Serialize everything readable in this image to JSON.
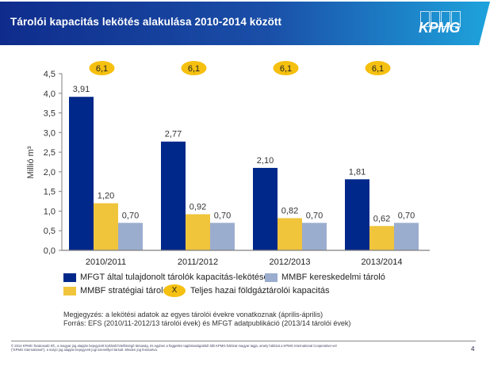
{
  "header": {
    "title": "Tárolói kapacitás lekötés alakulása 2010-2014 között",
    "logo": "KPMG",
    "colors": {
      "gradient_start": "#0F2C8C",
      "gradient_end": "#1EA3DC"
    }
  },
  "chart_data": {
    "type": "bar",
    "title": "",
    "xlabel": "",
    "ylabel": "Millió m³",
    "ylim": [
      0,
      4.5
    ],
    "yticks": [
      "0,0",
      "0,5",
      "1,0",
      "1,5",
      "2,0",
      "2,5",
      "3,0",
      "3,5",
      "4,0",
      "4,5"
    ],
    "categories": [
      "2010/2011",
      "2011/2012",
      "2012/2013",
      "2013/2014"
    ],
    "series": [
      {
        "name": "MFGT által tulajdonolt tárolók kapacitás-lekötése",
        "color": "#00288A",
        "values": [
          3.91,
          2.77,
          2.1,
          1.81
        ],
        "labels": [
          "3,91",
          "2,77",
          "2,10",
          "1,81"
        ]
      },
      {
        "name": "MMBF stratégiai tároló",
        "color": "#F0C53C",
        "values": [
          1.2,
          0.92,
          0.82,
          0.62
        ],
        "labels": [
          "1,20",
          "0,92",
          "0,82",
          "0,62"
        ]
      },
      {
        "name": "MMBF kereskedelmi tároló",
        "color": "#9BADCF",
        "values": [
          0.7,
          0.7,
          0.7,
          0.7
        ],
        "labels": [
          "0,70",
          "0,70",
          "0,70",
          "0,70"
        ]
      }
    ],
    "total_capacity": {
      "name": "Teljes hazai földgáztárolói kapacitás",
      "color": "#F5C010",
      "values": [
        6.1,
        6.1,
        6.1,
        6.1
      ],
      "labels": [
        "6,1",
        "6,1",
        "6,1",
        "6,1"
      ]
    },
    "grid": false,
    "legend_position": "bottom"
  },
  "legend": {
    "items": [
      {
        "label": "MFGT által tulajdonolt tárolók kapacitás-lekötése",
        "color": "#00288A"
      },
      {
        "label": "MMBF kereskedelmi tároló",
        "color": "#9BADCF"
      },
      {
        "label": "MMBF stratégiai tároló",
        "color": "#F0C53C"
      },
      {
        "label": "Teljes hazai földgáztárolói kapacitás",
        "marker": "X",
        "color": "#F5C010"
      }
    ]
  },
  "notes": {
    "line1": "Megjegyzés: a lekötési adatok az egyes tárolói évekre vonatkoznak (április-április)",
    "line2": "Forrás: EFS (2010/11-2012/13 tárolói évek) és MFGT adatpublikáció (2013/14 tárolói évek)"
  },
  "footer": {
    "disclaimer": "© 2014 KPMG Tanácsadó Kft., a magyar jog alapján bejegyzett korlátolt felelősségű társaság, és egyben a független tagtársaságokból álló KPMG-hálózat magyar tagja, amely hálózat a KPMG International Cooperative-vel (\"KPMG International\"), a svájci jog alapján bejegyzett jogi személlyel társult. Minden jog fenntartva.",
    "page_number": "4"
  }
}
